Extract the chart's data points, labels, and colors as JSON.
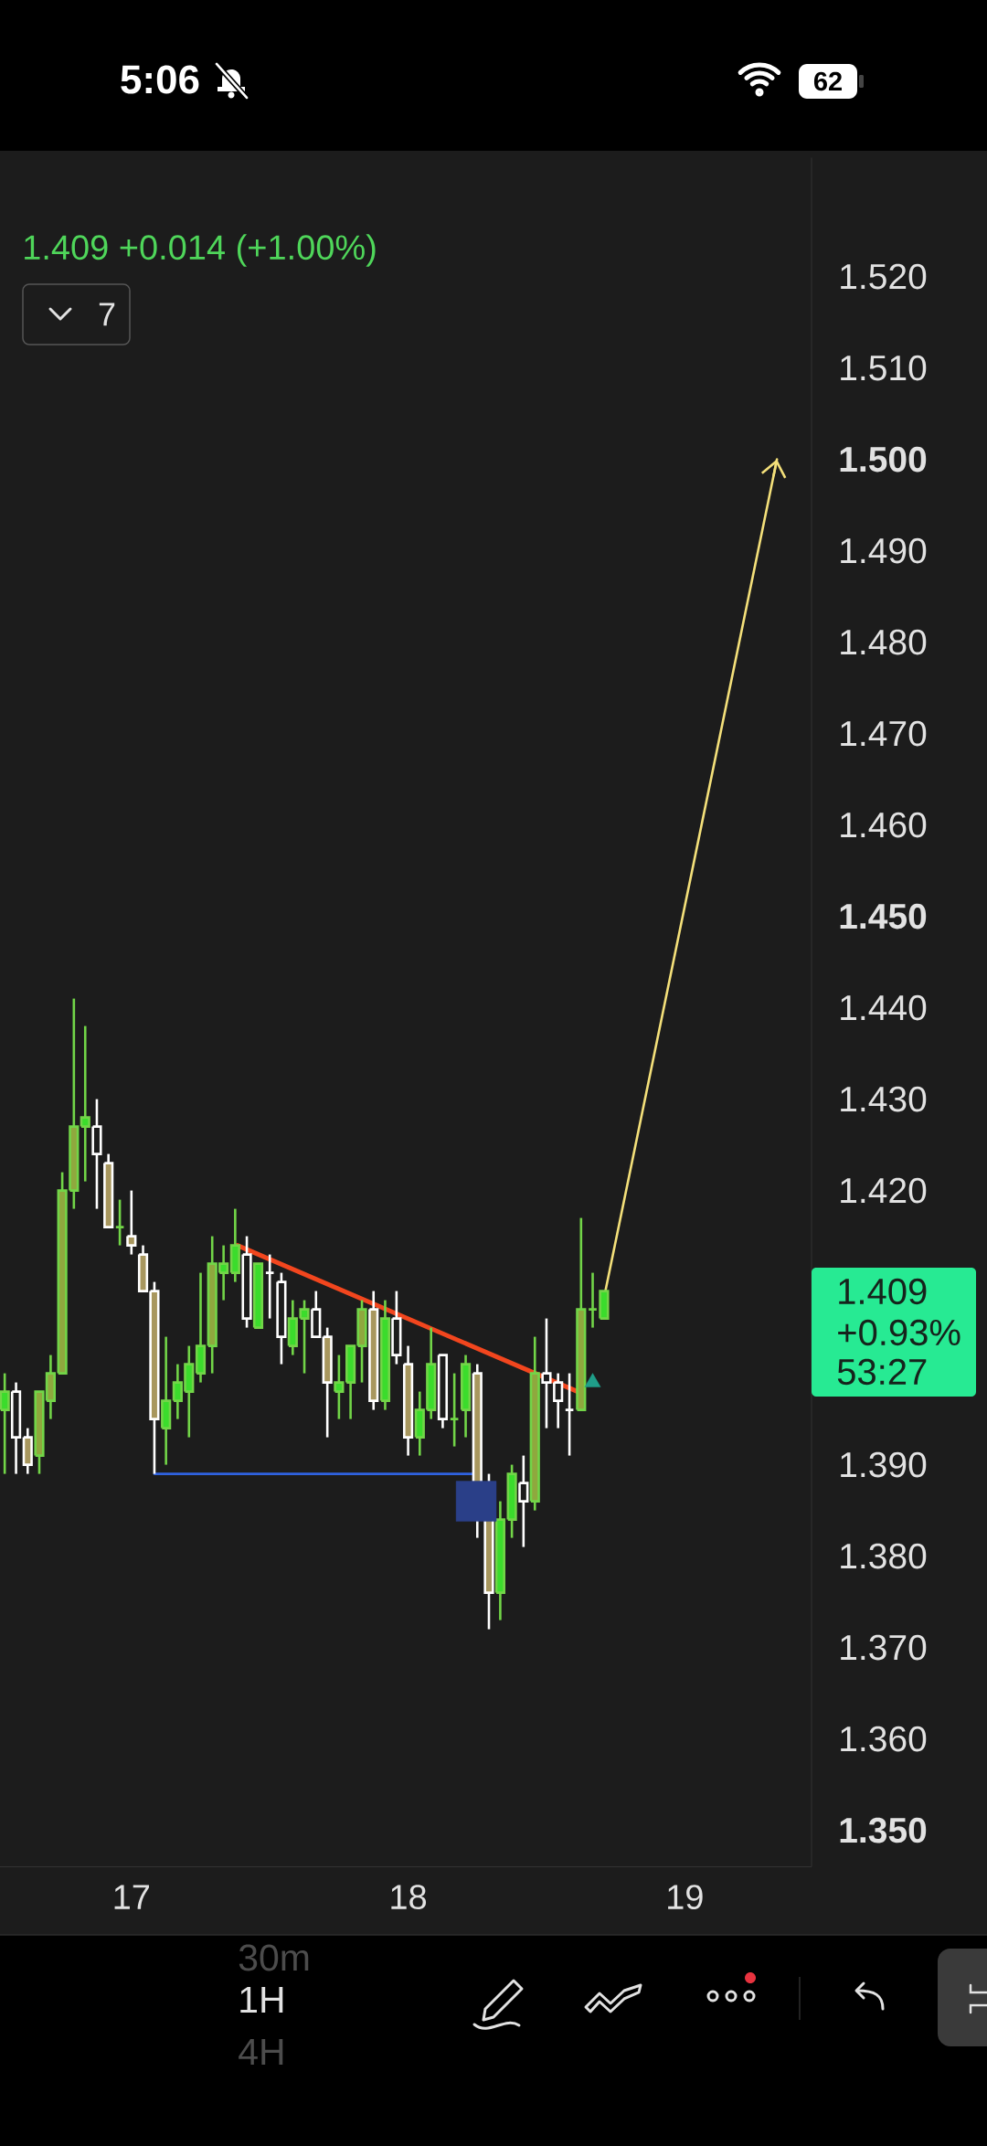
{
  "chart_data": {
    "type": "candlestick",
    "subtitle": "1.409 +0.014 (+1.00%)",
    "xlim": [
      16.525,
      19.458
    ],
    "xticks": [
      17,
      18,
      19
    ],
    "ylim": [
      1.346,
      1.533
    ],
    "yticks": [
      {
        "value": 1.35,
        "label": "1.350"
      },
      {
        "value": 1.36,
        "label": "1.360"
      },
      {
        "value": 1.37,
        "label": "1.370"
      },
      {
        "value": 1.38,
        "label": "1.380"
      },
      {
        "value": 1.39,
        "label": "1.390"
      },
      {
        "value": 1.42,
        "label": "1.420"
      },
      {
        "value": 1.43,
        "label": "1.430"
      },
      {
        "value": 1.44,
        "label": "1.440"
      },
      {
        "value": 1.45,
        "label": "1.450"
      },
      {
        "value": 1.46,
        "label": "1.460"
      },
      {
        "value": 1.47,
        "label": "1.470"
      },
      {
        "value": 1.48,
        "label": "1.480"
      },
      {
        "value": 1.49,
        "label": "1.490"
      },
      {
        "value": 1.5,
        "label": "1.500"
      },
      {
        "value": 1.51,
        "label": "1.510"
      },
      {
        "value": 1.52,
        "label": "1.520"
      }
    ],
    "series": [
      {
        "color": "#72d548",
        "x": [
          16.542,
          16.667,
          16.708,
          16.75,
          16.792,
          16.833,
          16.958,
          17.125,
          17.167,
          17.208,
          17.25,
          17.292,
          17.333,
          17.375,
          17.458,
          17.583,
          17.625,
          17.75,
          17.792,
          17.833,
          17.917,
          18.042,
          18.083,
          18.167,
          18.208,
          18.333,
          18.375,
          18.458,
          18.625,
          18.667,
          18.708
        ],
        "ohlc": [
          [
            1.396,
            1.4,
            1.389,
            1.398
          ],
          [
            1.391,
            1.398,
            1.389,
            1.398
          ],
          [
            1.397,
            1.402,
            1.395,
            1.4
          ],
          [
            1.4,
            1.422,
            1.4,
            1.42
          ],
          [
            1.42,
            1.441,
            1.418,
            1.427
          ],
          [
            1.427,
            1.438,
            1.421,
            1.428
          ],
          [
            1.416,
            1.419,
            1.414,
            1.416
          ],
          [
            1.394,
            1.404,
            1.39,
            1.397
          ],
          [
            1.397,
            1.401,
            1.395,
            1.399
          ],
          [
            1.398,
            1.403,
            1.393,
            1.401
          ],
          [
            1.4,
            1.411,
            1.399,
            1.403
          ],
          [
            1.403,
            1.415,
            1.4,
            1.412
          ],
          [
            1.411,
            1.414,
            1.408,
            1.412
          ],
          [
            1.411,
            1.418,
            1.41,
            1.414
          ],
          [
            1.405,
            1.412,
            1.405,
            1.412
          ],
          [
            1.403,
            1.408,
            1.402,
            1.406
          ],
          [
            1.406,
            1.408,
            1.4,
            1.407
          ],
          [
            1.398,
            1.402,
            1.395,
            1.399
          ],
          [
            1.399,
            1.403,
            1.395,
            1.403
          ],
          [
            1.403,
            1.408,
            1.399,
            1.407
          ],
          [
            1.397,
            1.408,
            1.396,
            1.406
          ],
          [
            1.393,
            1.398,
            1.391,
            1.396
          ],
          [
            1.396,
            1.405,
            1.395,
            1.401
          ],
          [
            1.395,
            1.4,
            1.392,
            1.395
          ],
          [
            1.396,
            1.402,
            1.393,
            1.401
          ],
          [
            1.376,
            1.386,
            1.373,
            1.384
          ],
          [
            1.384,
            1.39,
            1.382,
            1.389
          ],
          [
            1.386,
            1.404,
            1.385,
            1.4
          ],
          [
            1.396,
            1.417,
            1.396,
            1.407
          ],
          [
            1.407,
            1.411,
            1.405,
            1.407
          ],
          [
            1.406,
            1.409,
            1.406,
            1.409
          ]
        ],
        "colors": [
          "#3bdc2c",
          "#8fa83e",
          "#8fa83e",
          "#8fa83e",
          "#8fa83e",
          "#3bdc2c",
          "#72d548",
          "#3bdc2c",
          "#3bdc2c",
          "#3bdc2c",
          "#3bdc2c",
          "#8fa83e",
          "#3bdc2c",
          "#3bdc2c",
          "#3bdc2c",
          "#3bdc2c",
          "#3bdc2c",
          "#3bdc2c",
          "#3bdc2c",
          "#8fa83e",
          "#3bdc2c",
          "#3bdc2c",
          "#3bdc2c",
          "#72d548",
          "#3bdc2c",
          "#3bdc2c",
          "#3bdc2c",
          "#8fa83e",
          "#8fa83e",
          "#72d548",
          "#3bdc2c"
        ]
      },
      {
        "color": "#ffffff",
        "x": [
          16.583,
          16.625,
          16.875,
          16.917,
          17,
          17.042,
          17.083,
          17.417,
          17.5,
          17.542,
          17.667,
          17.708,
          17.875,
          17.958,
          18,
          18.125,
          18.25,
          18.292,
          18.417,
          18.5,
          18.542,
          18.583
        ],
        "ohlc": [
          [
            1.398,
            1.399,
            1.389,
            1.393
          ],
          [
            1.393,
            1.394,
            1.389,
            1.39
          ],
          [
            1.427,
            1.43,
            1.418,
            1.424
          ],
          [
            1.423,
            1.424,
            1.416,
            1.416
          ],
          [
            1.415,
            1.42,
            1.413,
            1.414
          ],
          [
            1.413,
            1.414,
            1.409,
            1.409
          ],
          [
            1.409,
            1.41,
            1.389,
            1.395
          ],
          [
            1.413,
            1.415,
            1.405,
            1.406
          ],
          [
            1.411,
            1.413,
            1.406,
            1.411
          ],
          [
            1.41,
            1.411,
            1.401,
            1.404
          ],
          [
            1.407,
            1.409,
            1.404,
            1.404
          ],
          [
            1.404,
            1.405,
            1.393,
            1.399
          ],
          [
            1.407,
            1.409,
            1.396,
            1.397
          ],
          [
            1.406,
            1.409,
            1.401,
            1.402
          ],
          [
            1.401,
            1.403,
            1.391,
            1.393
          ],
          [
            1.402,
            1.402,
            1.394,
            1.395
          ],
          [
            1.4,
            1.401,
            1.382,
            1.384
          ],
          [
            1.384,
            1.389,
            1.372,
            1.376
          ],
          [
            1.388,
            1.391,
            1.381,
            1.386
          ],
          [
            1.4,
            1.406,
            1.394,
            1.399
          ],
          [
            1.399,
            1.4,
            1.394,
            1.397
          ],
          [
            1.396,
            1.4,
            1.391,
            1.396
          ]
        ],
        "colors": [
          "#1c1c1c",
          "#a8975e",
          "#1c1c1c",
          "#a8975e",
          "#a8975e",
          "#a8975e",
          "#a8975e",
          "#1c1c1c",
          "#ffffff",
          "#1c1c1c",
          "#1c1c1c",
          "#a8975e",
          "#a8975e",
          "#1c1c1c",
          "#a8975e",
          "#1c1c1c",
          "#a8975e",
          "#a8975e",
          "#1c1c1c",
          "#1c1c1c",
          "#1c1c1c",
          "#ffffff"
        ]
      },
      {
        "type": "line",
        "x": [
          17.383,
          18.613
        ],
        "values": [
          1.414,
          1.398
        ],
        "color": "#f2461e"
      },
      {
        "type": "line",
        "x": [
          17.083,
          18.233
        ],
        "values": [
          1.389,
          1.389
        ],
        "color": "#2f62e0"
      },
      {
        "type": "line",
        "x": [
          18.713,
          19.333
        ],
        "values": [
          1.409,
          1.5
        ],
        "color": "#f4e07a"
      },
      {
        "type": "scatter",
        "x": [
          18.667
        ],
        "values": [
          1.399
        ],
        "color": "#1f9e89",
        "marker": "triangle"
      },
      {
        "type": "scatter",
        "x": [
          18.246
        ],
        "values": [
          1.386
        ],
        "color": "#2a3f88",
        "marker": "square"
      }
    ],
    "annotations": [
      "5:06",
      "62",
      "7",
      "1.409",
      "+0.93%",
      "53:27",
      "30m",
      "1H",
      "4H"
    ]
  }
}
